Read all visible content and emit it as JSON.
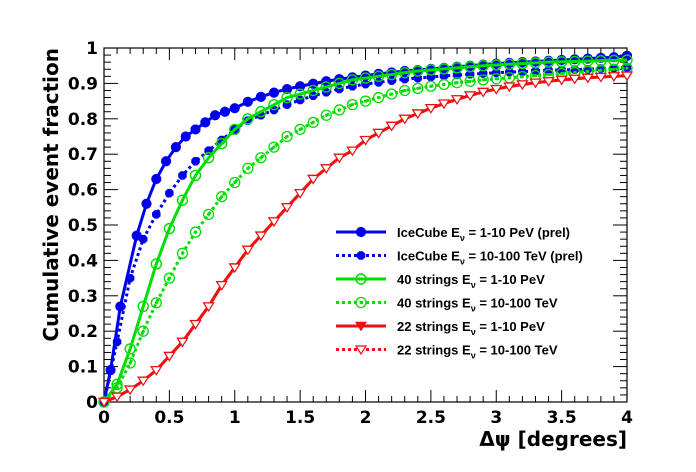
{
  "chart_data": {
    "type": "line",
    "title": "",
    "xlabel": "Δψ [degrees]",
    "ylabel": "Cumulative event fraction",
    "xlim": [
      0,
      4
    ],
    "ylim": [
      0,
      1
    ],
    "xticks": [
      "0",
      "0.5",
      "1",
      "1.5",
      "2",
      "2.5",
      "3",
      "3.5",
      "4"
    ],
    "yticks": [
      "0",
      "0.1",
      "0.2",
      "0.3",
      "0.4",
      "0.5",
      "0.6",
      "0.7",
      "0.8",
      "0.9",
      "1"
    ],
    "grid": false,
    "legend_position": "center-right",
    "series": [
      {
        "name": "IceCube E_ν = 1-10 PeV (prel)",
        "label_main": "IceCube E",
        "label_sub": "ν",
        "label_rest": " = 1-10 PeV (prel)",
        "color": "#0000ee",
        "line": "solid",
        "marker": "circle-filled",
        "x": [
          0.0,
          0.05,
          0.125,
          0.25,
          0.325,
          0.4,
          0.475,
          0.55,
          0.625,
          0.7,
          0.775,
          0.85,
          0.925,
          1.0,
          1.1,
          1.2,
          1.3,
          1.4,
          1.5,
          1.6,
          1.7,
          1.8,
          1.9,
          2.0,
          2.1,
          2.2,
          2.3,
          2.4,
          2.5,
          2.6,
          2.7,
          2.8,
          2.9,
          3.0,
          3.1,
          3.2,
          3.3,
          3.4,
          3.5,
          3.6,
          3.7,
          3.8,
          3.9,
          4.0
        ],
        "y": [
          0.0,
          0.09,
          0.27,
          0.47,
          0.56,
          0.63,
          0.68,
          0.72,
          0.75,
          0.77,
          0.79,
          0.81,
          0.82,
          0.83,
          0.848,
          0.862,
          0.874,
          0.884,
          0.892,
          0.899,
          0.906,
          0.912,
          0.917,
          0.922,
          0.927,
          0.931,
          0.935,
          0.938,
          0.941,
          0.944,
          0.947,
          0.95,
          0.953,
          0.956,
          0.958,
          0.96,
          0.962,
          0.964,
          0.966,
          0.968,
          0.97,
          0.972,
          0.974,
          0.978
        ]
      },
      {
        "name": "IceCube E_ν = 10-100 TeV (prel)",
        "label_main": "IceCube E",
        "label_sub": "ν",
        "label_rest": " = 10-100 TeV (prel)",
        "color": "#0000ee",
        "line": "dotted",
        "marker": "hexagon-filled",
        "x": [
          0.0,
          0.1,
          0.2,
          0.3,
          0.4,
          0.5,
          0.6,
          0.7,
          0.8,
          0.9,
          1.0,
          1.1,
          1.2,
          1.3,
          1.4,
          1.5,
          1.6,
          1.7,
          1.8,
          1.9,
          2.0,
          2.1,
          2.2,
          2.3,
          2.4,
          2.5,
          2.6,
          2.7,
          2.8,
          2.9,
          3.0,
          3.1,
          3.2,
          3.3,
          3.4,
          3.5,
          3.6,
          3.7,
          3.8,
          3.9,
          4.0
        ],
        "y": [
          0.0,
          0.17,
          0.35,
          0.46,
          0.53,
          0.59,
          0.64,
          0.68,
          0.71,
          0.74,
          0.77,
          0.795,
          0.81,
          0.825,
          0.84,
          0.853,
          0.865,
          0.875,
          0.884,
          0.892,
          0.898,
          0.903,
          0.908,
          0.912,
          0.915,
          0.918,
          0.921,
          0.924,
          0.926,
          0.928,
          0.93,
          0.932,
          0.933,
          0.935,
          0.937,
          0.938,
          0.939,
          0.94,
          0.942,
          0.943,
          0.945
        ]
      },
      {
        "name": "40 strings E_ν = 1-10 PeV",
        "label_main": "40 strings E",
        "label_sub": "ν",
        "label_rest": " = 1-10 PeV",
        "color": "#00dd00",
        "line": "solid",
        "marker": "circle-open",
        "x": [
          0.0,
          0.1,
          0.2,
          0.3,
          0.4,
          0.5,
          0.6,
          0.7,
          0.8,
          0.9,
          1.0,
          1.1,
          1.2,
          1.3,
          1.4,
          1.5,
          1.6,
          1.7,
          1.8,
          1.9,
          2.0,
          2.1,
          2.2,
          2.3,
          2.4,
          2.5,
          2.6,
          2.7,
          2.8,
          2.9,
          3.0,
          3.1,
          3.2,
          3.3,
          3.4,
          3.5,
          3.6,
          3.7,
          3.8,
          3.9,
          4.0
        ],
        "y": [
          0.0,
          0.05,
          0.15,
          0.27,
          0.39,
          0.49,
          0.57,
          0.64,
          0.69,
          0.73,
          0.77,
          0.8,
          0.82,
          0.84,
          0.86,
          0.87,
          0.88,
          0.89,
          0.9,
          0.91,
          0.915,
          0.92,
          0.925,
          0.93,
          0.935,
          0.938,
          0.941,
          0.944,
          0.947,
          0.95,
          0.952,
          0.954,
          0.956,
          0.958,
          0.96,
          0.961,
          0.962,
          0.963,
          0.964,
          0.965,
          0.966
        ]
      },
      {
        "name": "40 strings E_ν = 10-100 TeV",
        "label_main": "40 strings E",
        "label_sub": "ν",
        "label_rest": " = 10-100 TeV",
        "color": "#00dd00",
        "line": "dotted",
        "marker": "circle-open-dot",
        "x": [
          0.0,
          0.1,
          0.2,
          0.3,
          0.4,
          0.5,
          0.6,
          0.7,
          0.8,
          0.9,
          1.0,
          1.1,
          1.2,
          1.3,
          1.4,
          1.5,
          1.6,
          1.7,
          1.8,
          1.9,
          2.0,
          2.1,
          2.2,
          2.3,
          2.4,
          2.5,
          2.6,
          2.7,
          2.8,
          2.9,
          3.0,
          3.1,
          3.2,
          3.3,
          3.4,
          3.5,
          3.6,
          3.7,
          3.8,
          3.9,
          4.0
        ],
        "y": [
          0.0,
          0.04,
          0.11,
          0.2,
          0.28,
          0.35,
          0.42,
          0.48,
          0.53,
          0.58,
          0.62,
          0.66,
          0.69,
          0.72,
          0.75,
          0.77,
          0.79,
          0.81,
          0.825,
          0.84,
          0.85,
          0.86,
          0.87,
          0.88,
          0.886,
          0.892,
          0.897,
          0.902,
          0.906,
          0.91,
          0.913,
          0.916,
          0.919,
          0.922,
          0.925,
          0.928,
          0.931,
          0.934,
          0.937,
          0.94,
          0.943
        ]
      },
      {
        "name": "22 strings E_ν = 1-10 PeV",
        "label_main": "22 strings E",
        "label_sub": "ν",
        "label_rest": " = 1-10 PeV",
        "color": "#ee1111",
        "line": "solid",
        "marker": "triangle-down",
        "x": [
          0.0,
          0.1,
          0.2,
          0.3,
          0.4,
          0.5,
          0.6,
          0.7,
          0.8,
          0.9,
          1.0,
          1.1,
          1.2,
          1.3,
          1.4,
          1.5,
          1.6,
          1.7,
          1.8,
          1.9,
          2.0,
          2.1,
          2.2,
          2.3,
          2.4,
          2.5,
          2.6,
          2.7,
          2.8,
          2.9,
          3.0,
          3.1,
          3.2,
          3.3,
          3.4,
          3.5,
          3.6,
          3.7,
          3.8,
          3.9,
          4.0
        ],
        "y": [
          0.0,
          0.015,
          0.035,
          0.06,
          0.09,
          0.13,
          0.17,
          0.22,
          0.27,
          0.33,
          0.38,
          0.43,
          0.47,
          0.51,
          0.55,
          0.59,
          0.63,
          0.66,
          0.69,
          0.71,
          0.74,
          0.76,
          0.78,
          0.8,
          0.815,
          0.83,
          0.843,
          0.855,
          0.866,
          0.876,
          0.884,
          0.891,
          0.897,
          0.902,
          0.906,
          0.91,
          0.913,
          0.916,
          0.918,
          0.92,
          0.922
        ]
      },
      {
        "name": "22 strings E_ν = 10-100 TeV",
        "label_main": "22 strings E",
        "label_sub": "ν",
        "label_rest": " = 10-100 TeV",
        "color": "#ee1111",
        "line": "dotted",
        "marker": "triangle-down-open",
        "x": [
          0.0,
          0.1,
          0.2,
          0.3,
          0.4,
          0.5,
          0.6,
          0.7,
          0.8,
          0.9,
          1.0,
          1.1,
          1.2,
          1.3,
          1.4,
          1.5,
          1.6,
          1.7,
          1.8,
          1.9,
          2.0,
          2.1,
          2.2,
          2.3,
          2.4,
          2.5,
          2.6,
          2.7,
          2.8,
          2.9,
          3.0,
          3.1,
          3.2,
          3.3,
          3.4,
          3.5,
          3.6,
          3.7,
          3.8,
          3.9,
          4.0
        ],
        "y": [
          0.0,
          0.015,
          0.035,
          0.06,
          0.09,
          0.13,
          0.17,
          0.22,
          0.27,
          0.33,
          0.38,
          0.43,
          0.47,
          0.51,
          0.55,
          0.59,
          0.63,
          0.66,
          0.69,
          0.71,
          0.74,
          0.76,
          0.78,
          0.8,
          0.815,
          0.83,
          0.843,
          0.855,
          0.866,
          0.876,
          0.884,
          0.891,
          0.897,
          0.902,
          0.906,
          0.91,
          0.913,
          0.916,
          0.918,
          0.92,
          0.922
        ]
      }
    ]
  }
}
